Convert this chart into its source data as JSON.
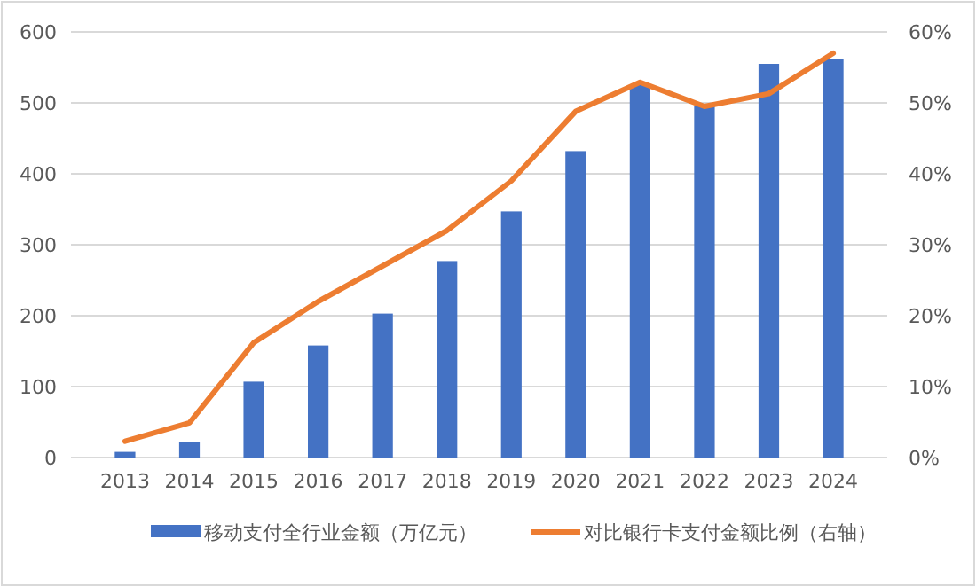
{
  "chart_data": {
    "type": "bar",
    "categories": [
      "2013",
      "2014",
      "2015",
      "2016",
      "2017",
      "2018",
      "2019",
      "2020",
      "2021",
      "2022",
      "2023",
      "2024"
    ],
    "series": [
      {
        "name": "移动支付全行业金额（万亿元）",
        "color": "#4472c4",
        "values": [
          8,
          22,
          107,
          158,
          203,
          277,
          347,
          432,
          525,
          495,
          555,
          562
        ]
      },
      {
        "name": "对比银行卡支付金额比例（右轴）",
        "type": "line",
        "axis": "y2",
        "color": "#ed7d31",
        "values": [
          2.3,
          4.9,
          16.2,
          22,
          27,
          32,
          39,
          48.8,
          52.9,
          49.5,
          51.3,
          57
        ]
      }
    ],
    "ylim": [
      0,
      600
    ],
    "yticks": [
      0,
      100,
      200,
      300,
      400,
      500,
      600
    ],
    "y2lim": [
      0,
      60
    ],
    "y2ticks": [
      {
        "value": 0,
        "label": "0%"
      },
      {
        "value": 10,
        "label": "10%"
      },
      {
        "value": 20,
        "label": "20%"
      },
      {
        "value": 30,
        "label": "30%"
      },
      {
        "value": 40,
        "label": "40%"
      },
      {
        "value": 50,
        "label": "50%"
      },
      {
        "value": 60,
        "label": "60%"
      }
    ],
    "grid": "y",
    "legend": "bottom",
    "marker": "none",
    "line_style": "solid"
  }
}
